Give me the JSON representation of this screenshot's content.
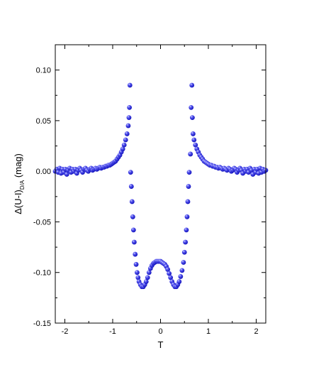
{
  "chart_data": {
    "type": "scatter",
    "xlabel": "T",
    "ylabel": {
      "main": "Δ(U-I)",
      "subscript": "D/A",
      "suffix": " (mag)"
    },
    "xlim": [
      -2.2,
      2.2
    ],
    "ylim": [
      -0.15,
      0.125
    ],
    "x_ticks": [
      -2,
      -1,
      0,
      1,
      2
    ],
    "x_tick_labels": [
      "-2",
      "-1",
      "0",
      "1",
      "2"
    ],
    "y_ticks": [
      -0.15,
      -0.1,
      -0.05,
      0.0,
      0.05,
      0.1
    ],
    "y_tick_labels": [
      "-0.15",
      "-0.10",
      "-0.05",
      "0.00",
      "0.05",
      "0.10"
    ],
    "grid": false,
    "marker_color": "#1515d6",
    "series": [
      {
        "points": [
          [
            -2.2,
            0.0
          ],
          [
            -2.17,
            0.002
          ],
          [
            -2.14,
            -0.001
          ],
          [
            -2.11,
            0.003
          ],
          [
            -2.08,
            -0.002
          ],
          [
            -2.05,
            0.002
          ],
          [
            -2.02,
            -0.001
          ],
          [
            -1.99,
            0.002
          ],
          [
            -1.96,
            -0.003
          ],
          [
            -1.93,
            0.001
          ],
          [
            -1.9,
            0.003
          ],
          [
            -1.87,
            -0.001
          ],
          [
            -1.84,
            0.002
          ],
          [
            -1.81,
            0.0
          ],
          [
            -1.78,
            0.002
          ],
          [
            -1.75,
            -0.002
          ],
          [
            -1.72,
            0.001
          ],
          [
            -1.69,
            0.003
          ],
          [
            -1.66,
            0.001
          ],
          [
            -1.63,
            -0.001
          ],
          [
            -1.6,
            0.002
          ],
          [
            -1.57,
            0.003
          ],
          [
            -1.54,
            0.001
          ],
          [
            -1.51,
            0.0
          ],
          [
            -1.48,
            0.002
          ],
          [
            -1.45,
            0.003
          ],
          [
            -1.42,
            0.001
          ],
          [
            -1.39,
            0.002
          ],
          [
            -1.36,
            0.003
          ],
          [
            -1.33,
            0.002
          ],
          [
            -1.3,
            0.003
          ],
          [
            -1.27,
            0.004
          ],
          [
            -1.24,
            0.003
          ],
          [
            -1.21,
            0.004
          ],
          [
            -1.18,
            0.004
          ],
          [
            -1.15,
            0.005
          ],
          [
            -1.12,
            0.005
          ],
          [
            -1.09,
            0.006
          ],
          [
            -1.06,
            0.006
          ],
          [
            -1.03,
            0.007
          ],
          [
            -1.0,
            0.008
          ],
          [
            -0.97,
            0.009
          ],
          [
            -0.94,
            0.01
          ],
          [
            -0.91,
            0.012
          ],
          [
            -0.88,
            0.014
          ],
          [
            -0.85,
            0.016
          ],
          [
            -0.82,
            0.019
          ],
          [
            -0.79,
            0.022
          ],
          [
            -0.76,
            0.026
          ],
          [
            -0.73,
            0.031
          ],
          [
            -0.7,
            0.037
          ],
          [
            -0.675,
            0.045
          ],
          [
            -0.66,
            0.053
          ],
          [
            -0.65,
            0.063
          ],
          [
            -0.64,
            0.085
          ],
          [
            -0.625,
            -0.001
          ],
          [
            -0.61,
            -0.015
          ],
          [
            -0.595,
            -0.03
          ],
          [
            -0.58,
            -0.045
          ],
          [
            -0.565,
            -0.058
          ],
          [
            -0.55,
            -0.07
          ],
          [
            -0.53,
            -0.082
          ],
          [
            -0.51,
            -0.092
          ],
          [
            -0.49,
            -0.1
          ],
          [
            -0.47,
            -0.105
          ],
          [
            -0.45,
            -0.109
          ],
          [
            -0.42,
            -0.112
          ],
          [
            -0.39,
            -0.114
          ],
          [
            -0.36,
            -0.114
          ],
          [
            -0.33,
            -0.112
          ],
          [
            -0.3,
            -0.109
          ],
          [
            -0.27,
            -0.105
          ],
          [
            -0.24,
            -0.1
          ],
          [
            -0.21,
            -0.096
          ],
          [
            -0.18,
            -0.093
          ],
          [
            -0.15,
            -0.091
          ],
          [
            -0.12,
            -0.09
          ],
          [
            -0.09,
            -0.089
          ],
          [
            -0.06,
            -0.089
          ],
          [
            -0.03,
            -0.089
          ],
          [
            0.0,
            -0.089
          ],
          [
            0.03,
            -0.09
          ],
          [
            0.06,
            -0.091
          ],
          [
            0.09,
            -0.092
          ],
          [
            0.12,
            -0.094
          ],
          [
            0.15,
            -0.097
          ],
          [
            0.18,
            -0.101
          ],
          [
            0.21,
            -0.105
          ],
          [
            0.24,
            -0.109
          ],
          [
            0.27,
            -0.112
          ],
          [
            0.3,
            -0.114
          ],
          [
            0.33,
            -0.114
          ],
          [
            0.36,
            -0.112
          ],
          [
            0.39,
            -0.109
          ],
          [
            0.42,
            -0.104
          ],
          [
            0.45,
            -0.098
          ],
          [
            0.48,
            -0.09
          ],
          [
            0.5,
            -0.08
          ],
          [
            0.52,
            -0.07
          ],
          [
            0.54,
            -0.058
          ],
          [
            0.555,
            -0.045
          ],
          [
            0.57,
            -0.03
          ],
          [
            0.585,
            -0.015
          ],
          [
            0.6,
            -0.001
          ],
          [
            0.625,
            0.017
          ],
          [
            0.64,
            0.063
          ],
          [
            0.655,
            0.085
          ],
          [
            0.665,
            0.053
          ],
          [
            0.68,
            0.037
          ],
          [
            0.7,
            0.031
          ],
          [
            0.73,
            0.026
          ],
          [
            0.76,
            0.022
          ],
          [
            0.79,
            0.019
          ],
          [
            0.82,
            0.016
          ],
          [
            0.85,
            0.014
          ],
          [
            0.88,
            0.012
          ],
          [
            0.91,
            0.01
          ],
          [
            0.94,
            0.009
          ],
          [
            0.97,
            0.008
          ],
          [
            1.0,
            0.007
          ],
          [
            1.03,
            0.006
          ],
          [
            1.06,
            0.006
          ],
          [
            1.09,
            0.005
          ],
          [
            1.12,
            0.005
          ],
          [
            1.15,
            0.004
          ],
          [
            1.18,
            0.004
          ],
          [
            1.21,
            0.003
          ],
          [
            1.24,
            0.004
          ],
          [
            1.27,
            0.003
          ],
          [
            1.3,
            0.002
          ],
          [
            1.33,
            0.003
          ],
          [
            1.36,
            0.002
          ],
          [
            1.39,
            0.001
          ],
          [
            1.42,
            0.003
          ],
          [
            1.45,
            0.002
          ],
          [
            1.48,
            0.0
          ],
          [
            1.51,
            0.001
          ],
          [
            1.54,
            0.003
          ],
          [
            1.57,
            0.002
          ],
          [
            1.6,
            -0.001
          ],
          [
            1.63,
            0.001
          ],
          [
            1.66,
            0.003
          ],
          [
            1.69,
            0.001
          ],
          [
            1.72,
            -0.002
          ],
          [
            1.75,
            0.002
          ],
          [
            1.78,
            0.0
          ],
          [
            1.81,
            0.002
          ],
          [
            1.84,
            -0.001
          ],
          [
            1.87,
            0.003
          ],
          [
            1.9,
            0.001
          ],
          [
            1.93,
            -0.003
          ],
          [
            1.96,
            0.002
          ],
          [
            1.99,
            -0.001
          ],
          [
            2.02,
            0.002
          ],
          [
            2.05,
            -0.002
          ],
          [
            2.08,
            0.003
          ],
          [
            2.11,
            -0.001
          ],
          [
            2.14,
            0.002
          ],
          [
            2.17,
            0.0
          ],
          [
            2.2,
            0.001
          ]
        ]
      }
    ]
  }
}
